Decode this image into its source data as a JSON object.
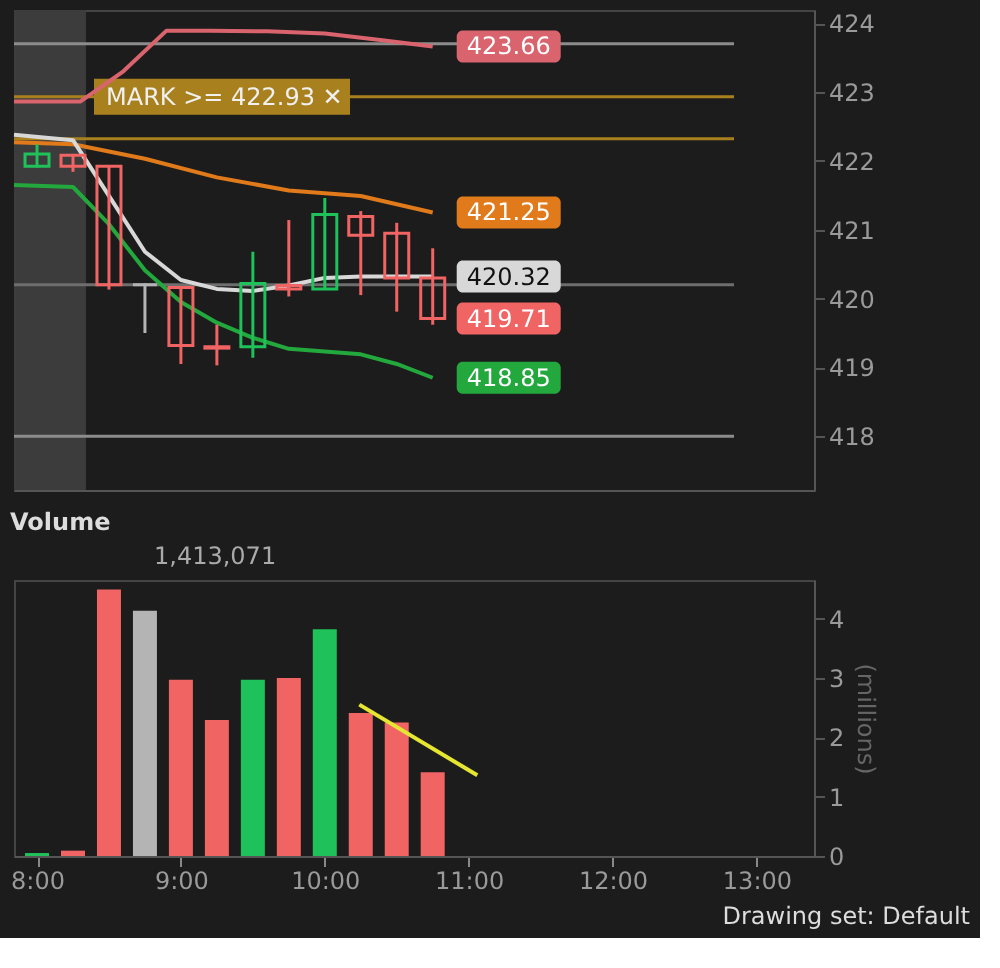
{
  "chart_data": [
    {
      "type": "candlestick",
      "x": [
        8,
        8.25,
        8.5,
        8.75,
        9,
        9.25,
        9.5,
        9.75,
        10,
        10.25,
        10.5,
        10.75
      ],
      "ohlc": [
        [
          421.92,
          422.24,
          421.9,
          422.1
        ],
        [
          422.08,
          422.08,
          421.84,
          421.92
        ],
        [
          421.92,
          421.92,
          420.13,
          420.2
        ],
        [
          420.2,
          420.22,
          419.5,
          420.2
        ],
        [
          420.16,
          420.16,
          419.05,
          419.32
        ],
        [
          419.3,
          419.62,
          419.03,
          419.28
        ],
        [
          419.3,
          420.68,
          419.14,
          420.22
        ],
        [
          420.19,
          421.14,
          420.03,
          420.14
        ],
        [
          420.14,
          421.46,
          420.14,
          421.22
        ],
        [
          421.19,
          421.27,
          420.05,
          420.92
        ],
        [
          420.95,
          421.1,
          419.81,
          420.3
        ],
        [
          420.3,
          420.73,
          419.62,
          419.71
        ]
      ],
      "colors": [
        "#1fc15a",
        "#f06464",
        "#f06464",
        "#b4b4b4",
        "#f06464",
        "#f06464",
        "#1fc15a",
        "#f06464",
        "#1fc15a",
        "#f06464",
        "#f06464",
        "#f06464"
      ],
      "series": [
        {
          "type": "line",
          "color": "#d9646e",
          "x": [
            7.84,
            8.3,
            8.6,
            8.9,
            9.2,
            9.6,
            10.0,
            10.4,
            10.75
          ],
          "values": [
            422.86,
            422.86,
            423.3,
            423.89,
            423.89,
            423.88,
            423.85,
            423.75,
            423.66
          ],
          "value_labels": [
            null,
            null,
            null,
            null,
            null,
            null,
            null,
            null,
            "423.66"
          ]
        },
        {
          "type": "line",
          "color": "#e07a1a",
          "x": [
            7.84,
            8.25,
            8.75,
            9.25,
            9.75,
            10.25,
            10.75
          ],
          "values": [
            422.27,
            422.24,
            422.03,
            421.76,
            421.57,
            421.49,
            421.25
          ],
          "value_labels": [
            null,
            null,
            null,
            null,
            null,
            null,
            "421.25"
          ]
        },
        {
          "type": "line",
          "color": "#d8d8d8",
          "x": [
            7.84,
            8.25,
            8.5,
            8.75,
            9,
            9.25,
            9.5,
            9.75,
            10,
            10.25,
            10.75
          ],
          "values": [
            422.38,
            422.3,
            421.49,
            420.68,
            420.27,
            420.14,
            420.11,
            420.19,
            420.3,
            420.32,
            420.32
          ],
          "value_labels": [
            null,
            null,
            null,
            null,
            null,
            null,
            null,
            null,
            null,
            null,
            "420.32"
          ]
        },
        {
          "type": "line",
          "color": "#22a83c",
          "x": [
            7.84,
            8.25,
            8.5,
            8.75,
            9,
            9.25,
            9.5,
            9.75,
            10.25,
            10.5,
            10.75
          ],
          "values": [
            421.65,
            421.62,
            421.08,
            420.41,
            419.95,
            419.65,
            419.43,
            419.27,
            419.19,
            419.05,
            418.85
          ],
          "value_labels": [
            null,
            null,
            null,
            null,
            null,
            null,
            null,
            null,
            null,
            null,
            "418.85"
          ]
        }
      ],
      "xlim": [
        7.84,
        13.4
      ],
      "ylim": [
        417.22,
        424.19
      ],
      "yticks": [
        418,
        419,
        420,
        421,
        422,
        423,
        424
      ],
      "tick_labels": "y",
      "grid": false,
      "ref_lines": [
        {
          "axis": "y",
          "value": 423.7,
          "color": "#8c8c8c"
        },
        {
          "axis": "y",
          "value": 422.93,
          "label": "MARK >= 422.93 ✕",
          "color": "#a8801e"
        },
        {
          "axis": "y",
          "value": 422.32,
          "color": "#a8801e"
        },
        {
          "axis": "y",
          "value": 420.2,
          "color": "#6e6e6e"
        },
        {
          "axis": "y",
          "value": 418,
          "color": "#8c8c8c"
        }
      ],
      "bands": [
        {
          "axis": "x",
          "from": 7.84,
          "to": 8.34,
          "color": "#3c3c3c"
        }
      ],
      "annotations": [
        "419.71"
      ]
    },
    {
      "type": "bar",
      "title": "Volume",
      "ylabel": "(millions)",
      "x": [
        8,
        8.25,
        8.5,
        8.75,
        9,
        9.25,
        9.5,
        9.75,
        10,
        10.25,
        10.5,
        10.75
      ],
      "values": [
        0.05,
        0.09,
        4.49,
        4.13,
        2.97,
        2.29,
        2.97,
        3.0,
        3.82,
        2.41,
        2.25,
        1.41
      ],
      "colors": [
        "#1fc15a",
        "#f06464",
        "#f06464",
        "#b4b4b4",
        "#f06464",
        "#f06464",
        "#1fc15a",
        "#f06464",
        "#1fc15a",
        "#f06464",
        "#f06464",
        "#f06464"
      ],
      "series": [
        {
          "type": "line",
          "color": "#e6e632",
          "x": [
            10.24,
            11.06
          ],
          "values": [
            2.55,
            1.36
          ]
        }
      ],
      "xlim": [
        7.84,
        13.4
      ],
      "xticks": [
        {
          "value": 8,
          "label": "8:00"
        },
        {
          "value": 9,
          "label": "9:00"
        },
        {
          "value": 10,
          "label": "10:00"
        },
        {
          "value": 11,
          "label": "11:00"
        },
        {
          "value": 12,
          "label": "12:00"
        },
        {
          "value": 13,
          "label": "13:00"
        }
      ],
      "ylim": [
        0,
        4.65
      ],
      "yticks": [
        0,
        1,
        2,
        3,
        4
      ],
      "grid": false,
      "annotations": [
        "1,413,071",
        "Drawing set: Default"
      ]
    }
  ]
}
